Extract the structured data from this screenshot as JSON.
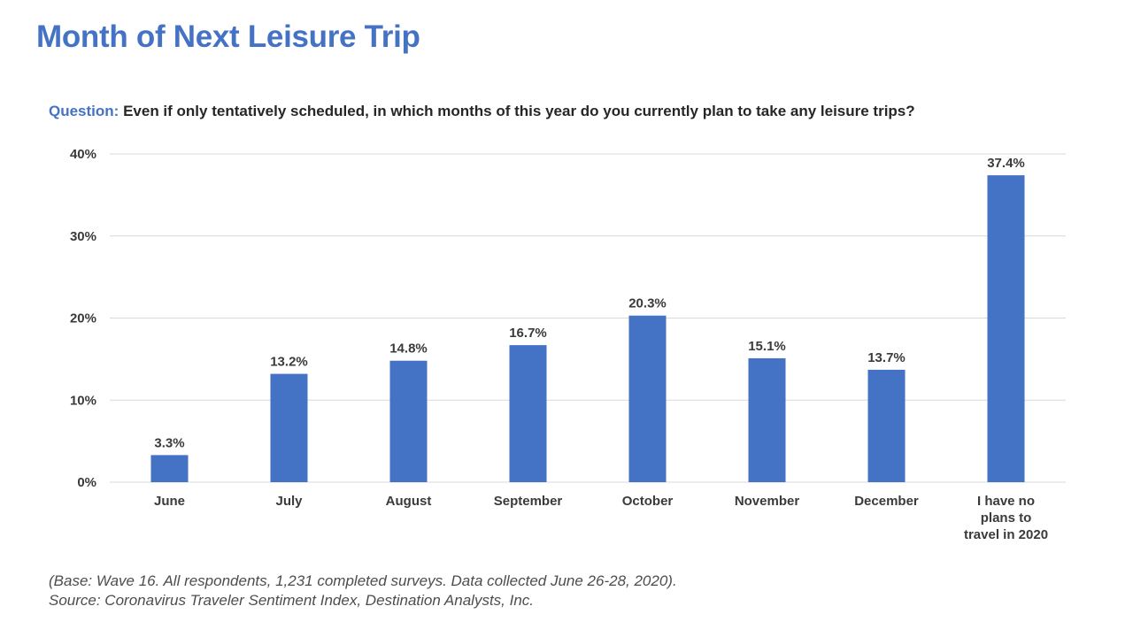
{
  "page": {
    "title": "Month of Next Leisure Trip",
    "question_label": "Question:",
    "question_text": " Even if only tentatively scheduled, in which months of this year do you currently plan to take any leisure trips?",
    "footer_base": "(Base: Wave 16. All respondents, 1,231 completed surveys. Data collected June 26-28, 2020).",
    "footer_source": "Source: Coronavirus Traveler Sentiment Index, Destination Analysts, Inc."
  },
  "colors": {
    "title": "#4472c4",
    "bar": "#4472c4",
    "grid": "#d9d9d9"
  },
  "chart_data": {
    "type": "bar",
    "title": "Month of Next Leisure Trip",
    "xlabel": "",
    "ylabel": "",
    "ylim": [
      0,
      40
    ],
    "yticks": [
      0,
      10,
      20,
      30,
      40
    ],
    "ytick_labels": [
      "0%",
      "10%",
      "20%",
      "30%",
      "40%"
    ],
    "grid": true,
    "categories": [
      [
        "June"
      ],
      [
        "July"
      ],
      [
        "August"
      ],
      [
        "September"
      ],
      [
        "October"
      ],
      [
        "November"
      ],
      [
        "December"
      ],
      [
        "I have no",
        "plans to",
        "travel in 2020"
      ]
    ],
    "values": [
      3.3,
      13.2,
      14.8,
      16.7,
      20.3,
      15.1,
      13.7,
      37.4
    ],
    "value_labels": [
      "3.3%",
      "13.2%",
      "14.8%",
      "16.7%",
      "20.3%",
      "15.1%",
      "13.7%",
      "37.4%"
    ]
  }
}
